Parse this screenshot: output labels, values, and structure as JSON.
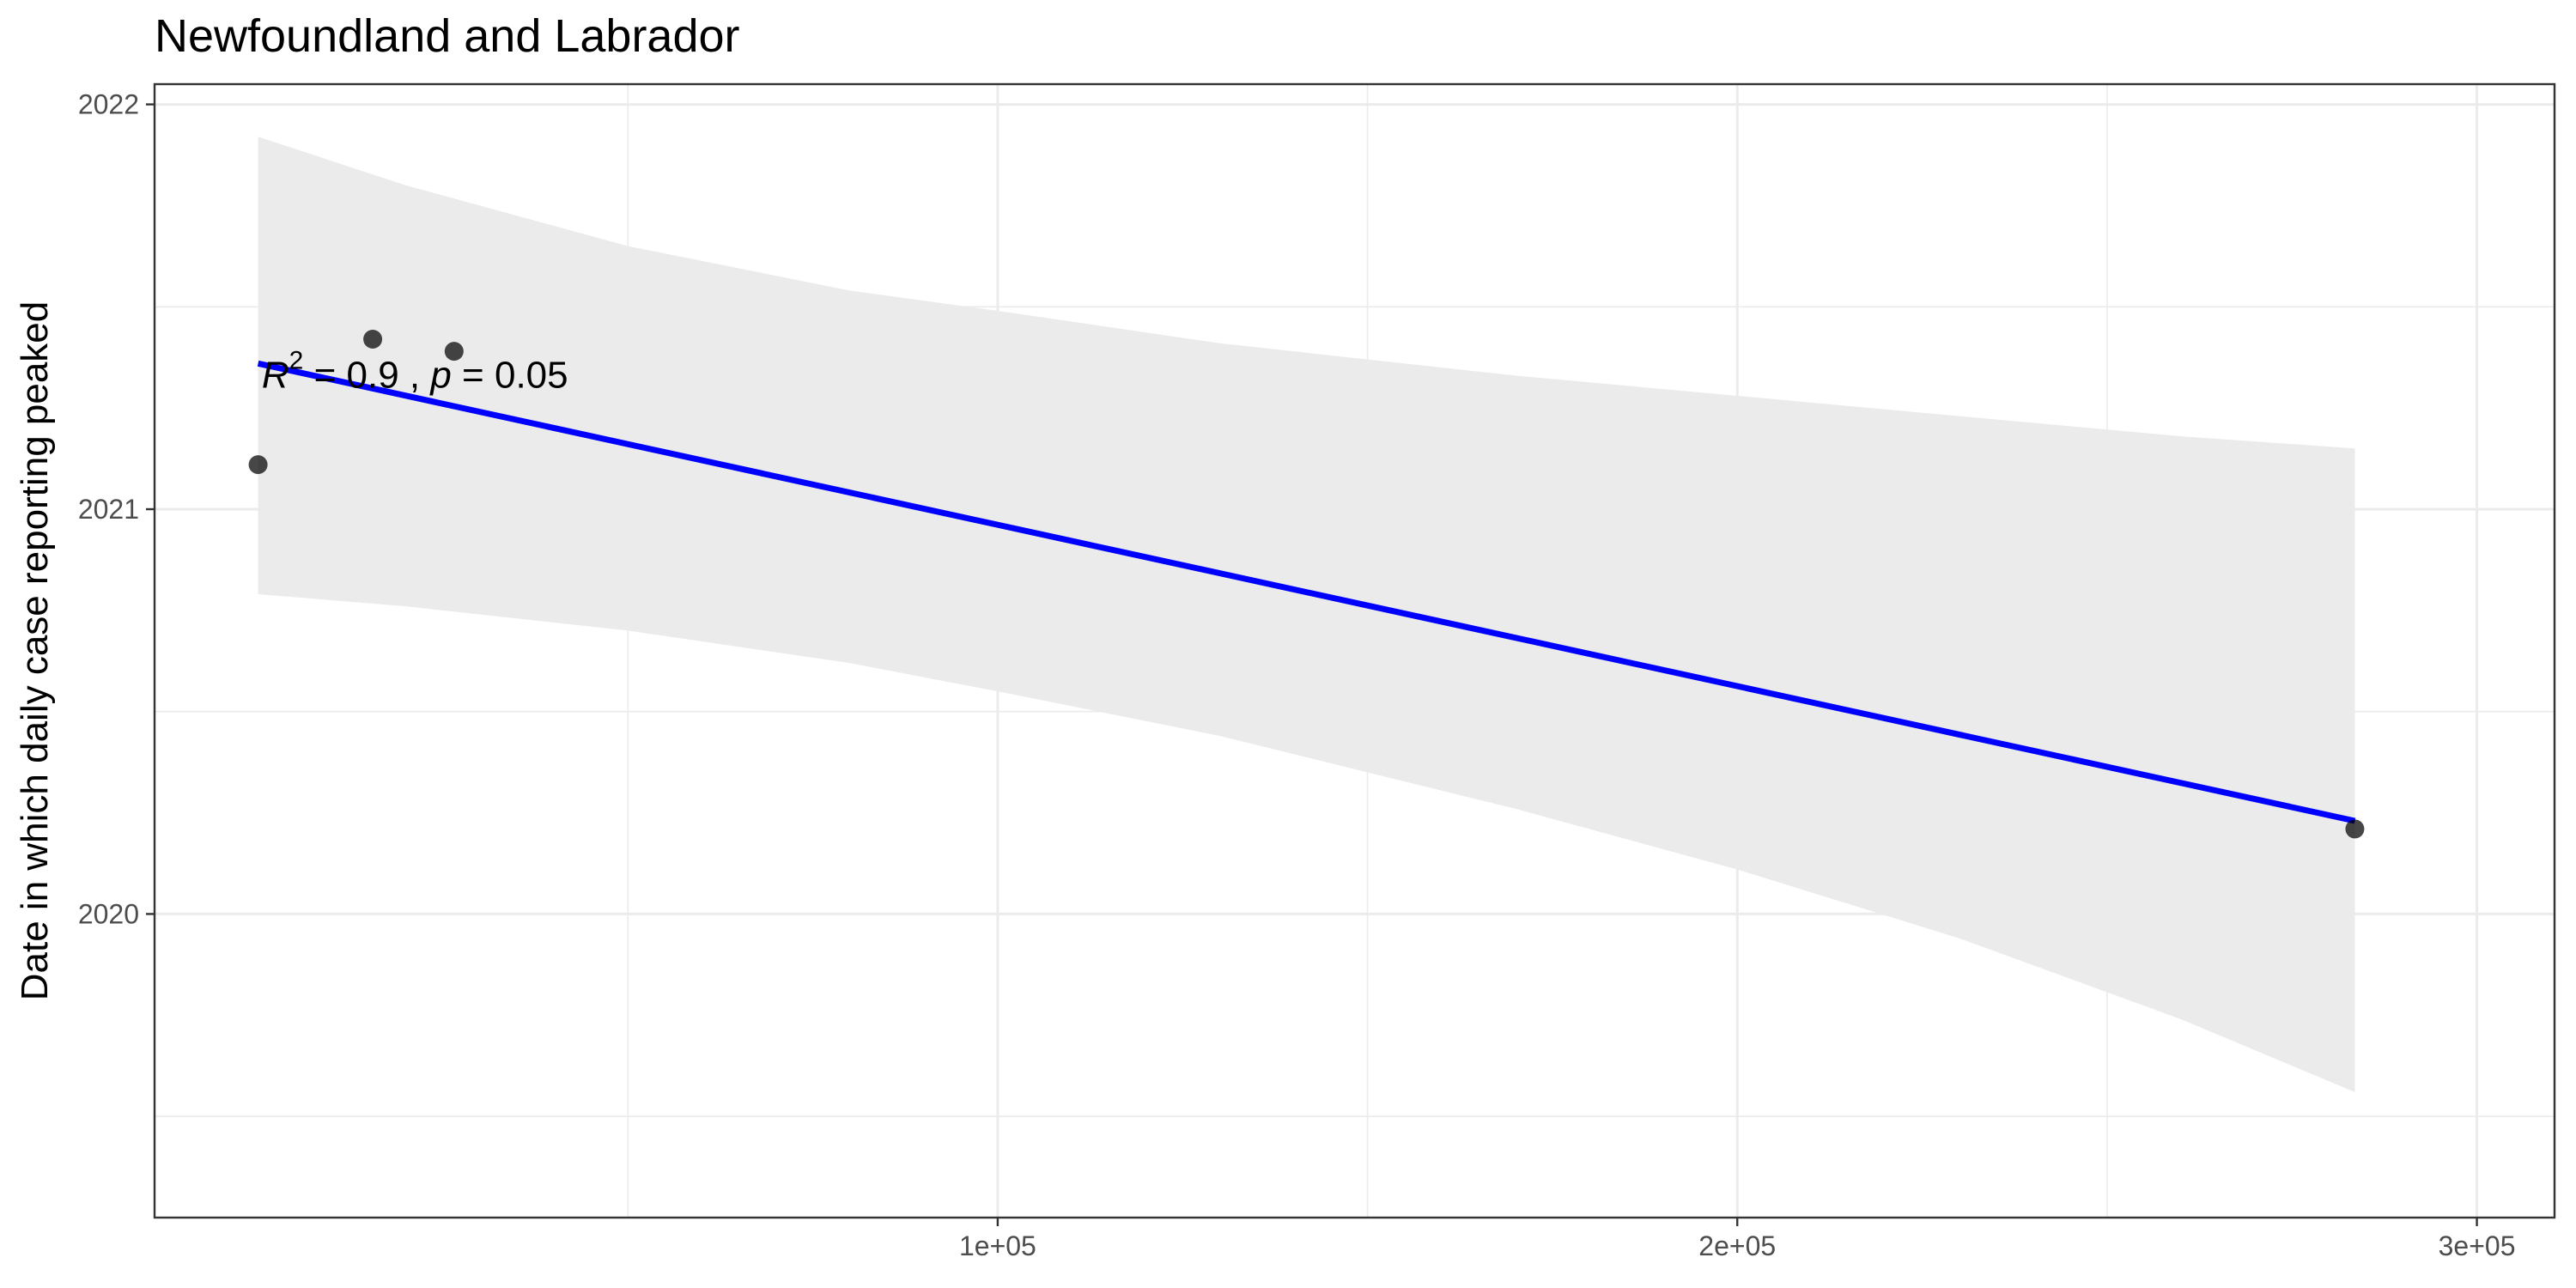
{
  "chart_data": {
    "type": "scatter",
    "title": "Newfoundland and Labrador",
    "xlabel": "",
    "ylabel": "Date in which daily case reporting peaked",
    "xlim": [
      -14000,
      310500
    ],
    "ylim": [
      2019.25,
      2022.05
    ],
    "x_ticks": [
      100000,
      200000,
      300000
    ],
    "x_tick_labels": [
      "1e+05",
      "2e+05",
      "3e+05"
    ],
    "y_ticks": [
      2020,
      2021,
      2022
    ],
    "y_tick_labels": [
      "2020",
      "2021",
      "2022"
    ],
    "grid": true,
    "legend": "none",
    "points": [
      {
        "x": 0,
        "y": 2021.11
      },
      {
        "x": 15500,
        "y": 2021.42
      },
      {
        "x": 26500,
        "y": 2021.39
      },
      {
        "x": 283500,
        "y": 2020.21
      }
    ],
    "fit_line": {
      "x": [
        0,
        283500
      ],
      "y": [
        2021.36,
        2020.23
      ],
      "color": "#0000ff"
    },
    "confidence_band": {
      "x": [
        0,
        20000,
        50000,
        80000,
        100000,
        130000,
        170000,
        200000,
        230000,
        260000,
        283500
      ],
      "upper": [
        2021.92,
        2021.8,
        2021.65,
        2021.54,
        2021.49,
        2021.41,
        2021.33,
        2021.28,
        2021.23,
        2021.18,
        2021.15
      ],
      "lower": [
        2020.79,
        2020.76,
        2020.7,
        2020.62,
        2020.55,
        2020.44,
        2020.26,
        2020.11,
        2019.94,
        2019.74,
        2019.56
      ],
      "color": "#ebebeb"
    },
    "annotation": {
      "r2_symbol": "R",
      "r2_exponent": "2",
      "r2_value": " = 0.9 , ",
      "p_symbol": "p",
      "p_value": " = 0.05",
      "x": 500,
      "y": 2021.3
    },
    "colors": {
      "fit": "#0000ff",
      "points": "#000000",
      "band": "#ebebeb"
    }
  }
}
